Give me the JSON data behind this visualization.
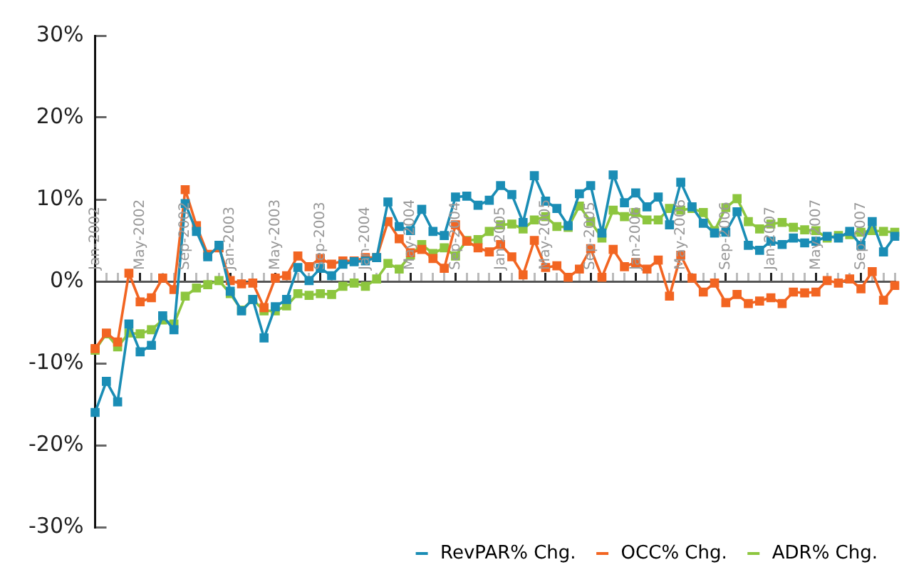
{
  "chart_data": {
    "type": "line",
    "categories": [
      "Jan-2002",
      null,
      null,
      null,
      "May-2002",
      null,
      null,
      null,
      "Sep-2002",
      null,
      null,
      null,
      "Jan-2003",
      null,
      null,
      null,
      "May-2003",
      null,
      null,
      null,
      "Sep-2003",
      null,
      null,
      null,
      "Jan-2004",
      null,
      null,
      null,
      "May-2004",
      null,
      null,
      null,
      "Sep-2004",
      null,
      null,
      null,
      "Jan-2005",
      null,
      null,
      null,
      "May-2005",
      null,
      null,
      null,
      "Sep-2005",
      null,
      null,
      null,
      "Jan-2006",
      null,
      null,
      null,
      "May-2006",
      null,
      null,
      null,
      "Sep-2006",
      null,
      null,
      null,
      "Jan-2007",
      null,
      null,
      null,
      "May-2007",
      null,
      null,
      null,
      "Sep-2007",
      null,
      null,
      null
    ],
    "series": [
      {
        "name": "RevPAR% Chg.",
        "color": "#1a8db5",
        "values": [
          -16.0,
          -12.2,
          -14.7,
          -5.2,
          -8.6,
          -7.8,
          -4.2,
          -5.9,
          9.5,
          6.1,
          3.0,
          4.4,
          -1.2,
          -3.6,
          -2.2,
          -6.9,
          -3.1,
          -2.2,
          1.7,
          0.1,
          1.6,
          0.7,
          2.1,
          2.4,
          2.5,
          2.9,
          9.7,
          6.7,
          6.2,
          8.8,
          6.1,
          5.6,
          10.3,
          10.4,
          9.3,
          9.9,
          11.7,
          10.6,
          7.2,
          12.9,
          9.8,
          8.9,
          6.8,
          10.7,
          11.7,
          5.9,
          13.0,
          9.6,
          10.8,
          9.1,
          10.3,
          6.9,
          12.1,
          9.1,
          7.1,
          5.9,
          6.0,
          8.5,
          4.4,
          3.8,
          4.9,
          4.5,
          5.3,
          4.7,
          4.9,
          5.5,
          5.3,
          6.1,
          4.4,
          7.3,
          3.6,
          5.5
        ]
      },
      {
        "name": "OCC% Chg.",
        "color": "#f26522",
        "values": [
          -8.2,
          -6.3,
          -7.4,
          1.0,
          -2.5,
          -2.0,
          0.4,
          -1.0,
          11.2,
          6.8,
          3.3,
          4.1,
          0.1,
          -0.3,
          -0.2,
          -3.2,
          0.4,
          0.7,
          3.1,
          1.8,
          2.8,
          2.1,
          2.5,
          2.5,
          2.9,
          2.9,
          7.3,
          5.2,
          3.5,
          3.9,
          2.8,
          1.6,
          6.9,
          4.9,
          4.1,
          3.6,
          4.5,
          3.0,
          0.8,
          5.0,
          1.7,
          1.9,
          0.5,
          1.5,
          4.0,
          0.5,
          3.9,
          1.8,
          2.3,
          1.5,
          2.6,
          -1.8,
          3.2,
          0.4,
          -1.3,
          -0.2,
          -2.6,
          -1.6,
          -2.7,
          -2.4,
          -2.0,
          -2.7,
          -1.3,
          -1.4,
          -1.3,
          0.1,
          -0.2,
          0.3,
          -0.9,
          1.2,
          -2.3,
          -0.5
        ]
      },
      {
        "name": "ADR% Chg.",
        "color": "#8dc63f",
        "values": [
          -8.4,
          -6.4,
          -8.0,
          -6.3,
          -6.4,
          -5.9,
          -4.7,
          -5.2,
          -1.8,
          -0.8,
          -0.4,
          0.1,
          -1.5,
          -3.5,
          -2.2,
          -3.6,
          -3.6,
          -3.0,
          -1.5,
          -1.7,
          -1.5,
          -1.6,
          -0.6,
          -0.2,
          -0.6,
          0.3,
          2.2,
          1.5,
          3.2,
          4.5,
          3.4,
          4.1,
          3.1,
          5.0,
          5.1,
          6.1,
          6.9,
          7.0,
          6.4,
          7.5,
          7.9,
          6.7,
          6.6,
          9.2,
          7.3,
          5.3,
          8.7,
          7.9,
          8.4,
          7.5,
          7.5,
          8.9,
          8.7,
          8.9,
          8.4,
          6.2,
          9.0,
          10.1,
          7.3,
          6.4,
          7.0,
          7.2,
          6.6,
          6.3,
          6.2,
          5.3,
          5.6,
          5.7,
          6.0,
          6.2,
          6.1,
          6.0
        ]
      }
    ],
    "ylim": [
      -30,
      30
    ],
    "yticks": [
      {
        "value": -30,
        "label": "-30%"
      },
      {
        "value": -20,
        "label": "-20%"
      },
      {
        "value": -10,
        "label": "-10%"
      },
      {
        "value": 0,
        "label": "0%"
      },
      {
        "value": 10,
        "label": "10%"
      },
      {
        "value": 20,
        "label": "20%"
      },
      {
        "value": 30,
        "label": "30%"
      }
    ],
    "grid": false,
    "legend": "bottom",
    "marker": "square",
    "line_style": "solid"
  }
}
